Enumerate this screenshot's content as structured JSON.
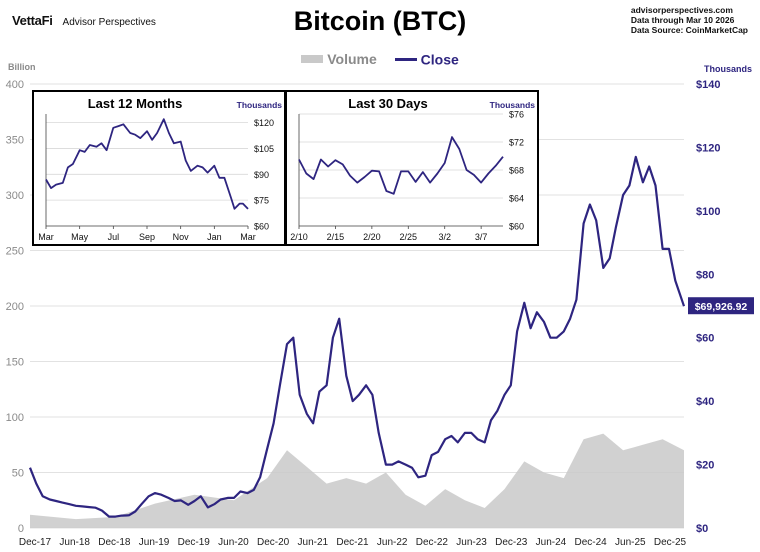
{
  "header": {
    "brand_logo": "VettaFi",
    "brand_sub": "Advisor Perspectives",
    "title": "Bitcoin (BTC)",
    "source_lines": [
      "advisorperspectives.com",
      "Data through Mar 10 2026",
      "Data Source: CoinMarketCap"
    ]
  },
  "colors": {
    "close": "#2e2580",
    "volume": "#c9c9c9",
    "grid": "#d8d8d8",
    "axis_left": "#8a8a8a"
  },
  "chart_data": [
    {
      "type": "area+line",
      "legend": {
        "placement": "top-center",
        "entries": [
          "Volume",
          "Close"
        ]
      },
      "grid": true,
      "y_left": {
        "label": "Billion",
        "range": [
          0,
          400
        ],
        "ticks": [
          0,
          50,
          100,
          150,
          200,
          250,
          300,
          350,
          400
        ]
      },
      "y_right": {
        "label": "Thousands",
        "range": [
          0,
          140
        ],
        "ticks": [
          0,
          20,
          40,
          60,
          80,
          100,
          120,
          140
        ],
        "tick_labels": [
          "$0",
          "$20",
          "$40",
          "$60",
          "$80",
          "$100",
          "$120",
          "$140"
        ]
      },
      "x_ticks": [
        "Dec-17",
        "Jun-18",
        "Dec-18",
        "Jun-19",
        "Dec-19",
        "Jun-20",
        "Dec-20",
        "Jun-21",
        "Dec-21",
        "Jun-22",
        "Dec-22",
        "Jun-23",
        "Dec-23",
        "Jun-24",
        "Dec-24",
        "Jun-25",
        "Dec-25"
      ],
      "last_value_label": "$69,926.92",
      "last_value": 69.93,
      "close_series": {
        "name": "Close",
        "axis": "right",
        "x": [
          2017.92,
          2018.0,
          2018.08,
          2018.17,
          2018.25,
          2018.33,
          2018.42,
          2018.5,
          2018.58,
          2018.67,
          2018.75,
          2018.83,
          2018.92,
          2019.0,
          2019.08,
          2019.17,
          2019.25,
          2019.33,
          2019.42,
          2019.5,
          2019.58,
          2019.67,
          2019.75,
          2019.83,
          2019.92,
          2020.0,
          2020.08,
          2020.17,
          2020.25,
          2020.33,
          2020.42,
          2020.5,
          2020.58,
          2020.67,
          2020.75,
          2020.83,
          2020.92,
          2021.0,
          2021.08,
          2021.17,
          2021.25,
          2021.33,
          2021.42,
          2021.5,
          2021.58,
          2021.67,
          2021.75,
          2021.83,
          2021.92,
          2022.0,
          2022.08,
          2022.17,
          2022.25,
          2022.33,
          2022.42,
          2022.5,
          2022.58,
          2022.67,
          2022.75,
          2022.83,
          2022.92,
          2023.0,
          2023.08,
          2023.17,
          2023.25,
          2023.33,
          2023.42,
          2023.5,
          2023.58,
          2023.67,
          2023.75,
          2023.83,
          2023.92,
          2024.0,
          2024.08,
          2024.17,
          2024.25,
          2024.33,
          2024.42,
          2024.5,
          2024.58,
          2024.67,
          2024.75,
          2024.83,
          2024.92,
          2025.0,
          2025.08,
          2025.17,
          2025.25,
          2025.33,
          2025.42,
          2025.5,
          2025.58,
          2025.67,
          2025.75,
          2025.83,
          2025.92,
          2026.0,
          2026.08,
          2026.19
        ],
        "y": [
          19.0,
          14.0,
          10.0,
          9.0,
          8.5,
          8.0,
          7.5,
          7.0,
          6.8,
          6.6,
          6.4,
          5.5,
          3.6,
          3.6,
          3.9,
          4.0,
          5.2,
          7.5,
          10.0,
          11.0,
          10.5,
          9.5,
          8.5,
          8.7,
          7.3,
          8.5,
          10.0,
          6.5,
          7.5,
          9.0,
          9.5,
          9.5,
          11.5,
          11.0,
          12.0,
          16.0,
          25.0,
          33.0,
          45.0,
          58.0,
          60.0,
          42.0,
          36.0,
          33.0,
          43.0,
          45.0,
          60.0,
          66.0,
          48.0,
          40.0,
          42.0,
          45.0,
          42.0,
          30.0,
          20.0,
          20.0,
          21.0,
          20.0,
          19.0,
          16.0,
          16.5,
          23.0,
          24.0,
          28.0,
          29.0,
          27.0,
          30.0,
          30.0,
          28.0,
          27.0,
          34.0,
          37.0,
          42.0,
          45.0,
          62.0,
          71.0,
          63.0,
          68.0,
          65.0,
          60.0,
          60.0,
          62.0,
          66.0,
          72.0,
          96.0,
          102.0,
          97.0,
          82.0,
          85.0,
          95.0,
          105.0,
          108.0,
          117.0,
          109.0,
          114.0,
          108.0,
          88.0,
          88.0,
          78.0,
          69.93
        ]
      },
      "volume_series": {
        "name": "Volume",
        "axis": "left",
        "x": [
          2017.92,
          2018.5,
          2019.0,
          2019.5,
          2020.0,
          2020.5,
          2020.92,
          2021.17,
          2021.42,
          2021.67,
          2021.92,
          2022.17,
          2022.42,
          2022.67,
          2022.92,
          2023.17,
          2023.42,
          2023.67,
          2023.92,
          2024.17,
          2024.42,
          2024.67,
          2024.92,
          2025.17,
          2025.42,
          2025.67,
          2025.92,
          2026.19
        ],
        "y": [
          12,
          8,
          10,
          22,
          30,
          25,
          45,
          70,
          55,
          40,
          45,
          40,
          50,
          30,
          20,
          35,
          25,
          18,
          35,
          60,
          50,
          45,
          80,
          85,
          70,
          75,
          80,
          70
        ]
      }
    },
    {
      "type": "line",
      "title": "Last 12 Months",
      "y_unit": "Thousands",
      "y_range": [
        60,
        125
      ],
      "y_ticks": [
        60,
        75,
        90,
        105,
        120
      ],
      "y_tick_labels": [
        "$60",
        "$75",
        "$90",
        "$105",
        "$120"
      ],
      "x_ticks": [
        "Mar",
        "May",
        "Jul",
        "Sep",
        "Nov",
        "Jan",
        "Mar"
      ],
      "x_tick_positions": [
        0,
        2,
        4,
        6,
        8,
        10,
        12
      ],
      "x": [
        0,
        0.3,
        0.6,
        1.0,
        1.3,
        1.6,
        2.0,
        2.3,
        2.6,
        3.0,
        3.3,
        3.6,
        4.0,
        4.3,
        4.6,
        5.0,
        5.3,
        5.6,
        6.0,
        6.3,
        6.6,
        7.0,
        7.3,
        7.6,
        8.0,
        8.3,
        8.6,
        9.0,
        9.3,
        9.6,
        10.0,
        10.3,
        10.6,
        11.0,
        11.2,
        11.5,
        11.7,
        12.0
      ],
      "y": [
        87,
        82,
        84,
        85,
        94,
        96,
        104,
        103,
        107,
        106,
        108,
        104,
        117,
        118,
        119,
        114,
        113,
        111,
        115,
        110,
        114,
        122,
        114,
        108,
        109,
        98,
        92,
        95,
        94,
        91,
        95,
        88,
        88,
        76,
        70,
        73,
        73,
        69.9
      ]
    },
    {
      "type": "line",
      "title": "Last 30 Days",
      "y_unit": "Thousands",
      "y_range": [
        60,
        76
      ],
      "y_ticks": [
        60,
        64,
        68,
        72,
        76
      ],
      "y_tick_labels": [
        "$60",
        "$64",
        "$68",
        "$72",
        "$76"
      ],
      "x_ticks": [
        "2/10",
        "2/15",
        "2/20",
        "2/25",
        "3/2",
        "3/7"
      ],
      "x_tick_positions": [
        0,
        5,
        10,
        15,
        20,
        25
      ],
      "x": [
        0,
        1,
        2,
        3,
        4,
        5,
        6,
        7,
        8,
        9,
        10,
        11,
        12,
        13,
        14,
        15,
        16,
        17,
        18,
        19,
        20,
        21,
        22,
        23,
        24,
        25,
        26,
        27,
        28
      ],
      "y": [
        69.5,
        67.5,
        66.7,
        69.5,
        68.5,
        69.4,
        68.8,
        67.2,
        66.2,
        67.0,
        67.9,
        67.8,
        65.0,
        64.6,
        67.8,
        67.8,
        66.3,
        67.7,
        66.2,
        67.5,
        69.0,
        72.7,
        71.0,
        68.0,
        67.3,
        66.2,
        67.5,
        68.6,
        69.9
      ]
    }
  ]
}
